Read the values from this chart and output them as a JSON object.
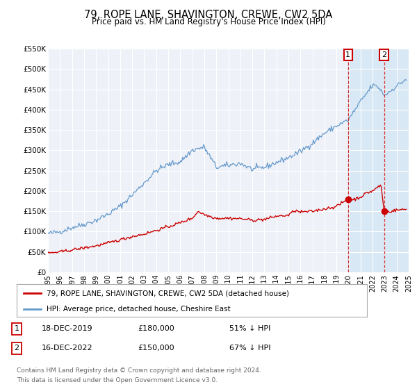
{
  "title": "79, ROPE LANE, SHAVINGTON, CREWE, CW2 5DA",
  "subtitle": "Price paid vs. HM Land Registry's House Price Index (HPI)",
  "background_color": "#ffffff",
  "plot_bg_color": "#eef2f8",
  "grid_color": "#ffffff",
  "red_color": "#cc0000",
  "blue_color": "#6699cc",
  "shade_color": "#d8e8f5",
  "ylim": [
    0,
    550000
  ],
  "xlim": [
    1995,
    2025
  ],
  "yticks": [
    0,
    50000,
    100000,
    150000,
    200000,
    250000,
    300000,
    350000,
    400000,
    450000,
    500000,
    550000
  ],
  "ytick_labels": [
    "£0",
    "£50K",
    "£100K",
    "£150K",
    "£200K",
    "£250K",
    "£300K",
    "£350K",
    "£400K",
    "£450K",
    "£500K",
    "£550K"
  ],
  "xticks": [
    1995,
    1996,
    1997,
    1998,
    1999,
    2000,
    2001,
    2002,
    2003,
    2004,
    2005,
    2006,
    2007,
    2008,
    2009,
    2010,
    2011,
    2012,
    2013,
    2014,
    2015,
    2016,
    2017,
    2018,
    2019,
    2020,
    2021,
    2022,
    2023,
    2024,
    2025
  ],
  "marker1_x": 2019.96,
  "marker1_y": 180000,
  "marker2_x": 2022.96,
  "marker2_y": 150000,
  "vline1_x": 2019.96,
  "vline2_x": 2022.96,
  "legend_label_red": "79, ROPE LANE, SHAVINGTON, CREWE, CW2 5DA (detached house)",
  "legend_label_blue": "HPI: Average price, detached house, Cheshire East",
  "table_row1_num": "1",
  "table_row1_date": "18-DEC-2019",
  "table_row1_price": "£180,000",
  "table_row1_pct": "51% ↓ HPI",
  "table_row2_num": "2",
  "table_row2_date": "16-DEC-2022",
  "table_row2_price": "£150,000",
  "table_row2_pct": "67% ↓ HPI",
  "footnote_line1": "Contains HM Land Registry data © Crown copyright and database right 2024.",
  "footnote_line2": "This data is licensed under the Open Government Licence v3.0."
}
